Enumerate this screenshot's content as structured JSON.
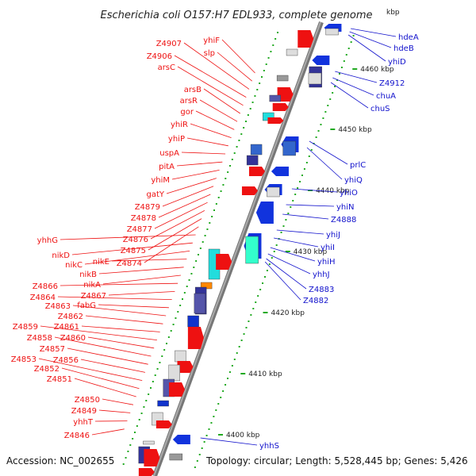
{
  "title": "Escherichia coli O157:H7 EDL933, complete genome",
  "accession": "Accession: NC_002655",
  "topology_info": "Topology: circular; Length: 5,528,445 bp; Genes: 5,426",
  "top_clipped_label": "kbp",
  "colors": {
    "left_label": "#ee1111",
    "right_label": "#1111cc",
    "backbone": "#888888",
    "tick": "#22aa22"
  },
  "kbp_markers": [
    "4400 kbp",
    "4410 kbp",
    "4420 kbp",
    "4430 kbp",
    "4440 kbp",
    "4450 kbp",
    "4460 kbp"
  ],
  "left_labels": [
    "yhiF",
    "slp",
    "Z4907",
    "Z4906",
    "arsC",
    "arsB",
    "arsR",
    "gor",
    "yhiR",
    "yhiP",
    "uspA",
    "pitA",
    "yhiM",
    "gatY",
    "Z4879",
    "Z4878",
    "Z4877",
    "Z4876",
    "Z4875",
    "Z4874",
    "yhhG",
    "nikD",
    "nikC",
    "nikE",
    "nikB",
    "nikA",
    "Z4866",
    "Z4867",
    "Z4864",
    "fabG",
    "Z4863",
    "Z4862",
    "Z4861",
    "Z4859",
    "Z4860",
    "Z4858",
    "Z4857",
    "Z4856",
    "Z4853",
    "Z4852",
    "Z4851",
    "Z4850",
    "Z4849",
    "yhhT",
    "Z4846"
  ],
  "right_labels": [
    "hdeA",
    "hdeB",
    "yhiD",
    "Z4912",
    "chuA",
    "chuS",
    "prlC",
    "yhiQ",
    "yhiO",
    "yhiN",
    "Z4888",
    "yhiJ",
    "yhiI",
    "yhiH",
    "yhhJ",
    "Z4883",
    "Z4882",
    "yhhS"
  ]
}
